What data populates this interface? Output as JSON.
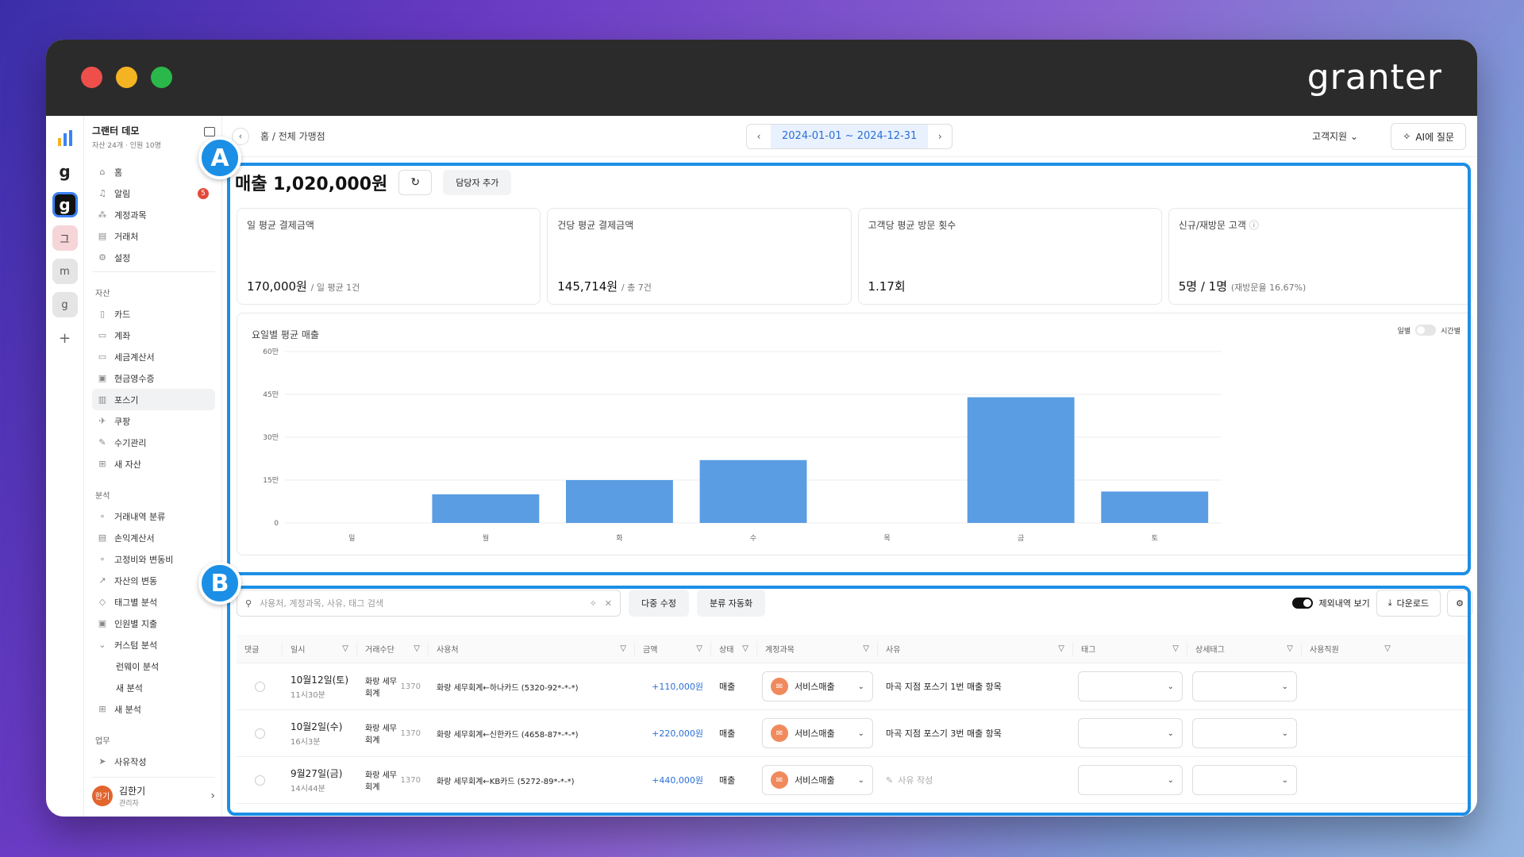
{
  "window": {
    "brand": "granter"
  },
  "rail": {
    "items": [
      "g",
      "g",
      "그",
      "m",
      "g",
      "+"
    ]
  },
  "sidebar": {
    "org_name": "그랜터 데모",
    "org_sub": "자산 24개 · 인원 10명",
    "top": [
      {
        "label": "홈",
        "icon": "home-icon"
      },
      {
        "label": "알림",
        "icon": "bell-icon",
        "badge": "5"
      },
      {
        "label": "계정과목",
        "icon": "ledger-icon"
      },
      {
        "label": "거래처",
        "icon": "contacts-icon"
      },
      {
        "label": "설정",
        "icon": "gear-icon"
      }
    ],
    "asset_section": "자산",
    "assets": [
      {
        "label": "카드",
        "icon": "card-icon"
      },
      {
        "label": "계좌",
        "icon": "bank-icon"
      },
      {
        "label": "세금계산서",
        "icon": "tax-invoice-icon"
      },
      {
        "label": "현금영수증",
        "icon": "receipt-icon"
      },
      {
        "label": "포스기",
        "icon": "pos-icon",
        "selected": true
      },
      {
        "label": "쿠팡",
        "icon": "coupang-icon"
      },
      {
        "label": "수기관리",
        "icon": "pencil-icon"
      },
      {
        "label": "새 자산",
        "icon": "plus-box-icon"
      }
    ],
    "analysis_section": "분석",
    "analysis": [
      {
        "label": "거래내역 분류",
        "icon": "classify-icon"
      },
      {
        "label": "손익계산서",
        "icon": "statement-icon"
      },
      {
        "label": "고정비와 변동비",
        "icon": "cost-icon"
      },
      {
        "label": "자산의 변동",
        "icon": "trend-icon"
      },
      {
        "label": "태그별 분석",
        "icon": "tag-icon"
      },
      {
        "label": "인원별 지출",
        "icon": "people-icon"
      },
      {
        "label": "커스텀 분석",
        "icon": "chevron-down-icon"
      },
      {
        "label": "런웨이 분석",
        "icon": "",
        "sub": true
      },
      {
        "label": "새 분석",
        "icon": "",
        "sub": true
      },
      {
        "label": "새 분석",
        "icon": "plus-box-icon"
      }
    ],
    "work_section": "업무",
    "work": [
      {
        "label": "사유작성",
        "icon": "send-icon"
      }
    ],
    "user": {
      "avatar": "한기",
      "name": "김한기",
      "role": "관리자"
    }
  },
  "topbar": {
    "breadcrumb": "홈 / 전체 가맹점",
    "date_range": "2024-01-01 ~ 2024-12-31",
    "support": "고객지원",
    "ai_button": "AI에 질문"
  },
  "callouts": {
    "a": "A",
    "b": "B"
  },
  "summary": {
    "title": "매출 1,020,000원",
    "add_manager": "담당자 추가",
    "cards": [
      {
        "label": "일 평균 결제금액",
        "value": "170,000원",
        "sub": "/ 일 평균 1건"
      },
      {
        "label": "건당 평균 결제금액",
        "value": "145,714원",
        "sub": "/ 총 7건"
      },
      {
        "label": "고객당 평균 방문 횟수",
        "value": "1.17회",
        "sub": ""
      },
      {
        "label": "신규/재방문 고객",
        "value": "5명 / 1명",
        "sub": "(재방문율 16.67%)"
      }
    ]
  },
  "chart_toggle": {
    "left": "일별",
    "right": "시간별"
  },
  "chart_data": {
    "type": "bar",
    "title": "요일별 평균 매출",
    "categories": [
      "일",
      "월",
      "화",
      "수",
      "목",
      "금",
      "토"
    ],
    "values": [
      0,
      100000,
      150000,
      220000,
      0,
      440000,
      110000
    ],
    "yticks": [
      "0",
      "15만",
      "30만",
      "45만",
      "60만"
    ],
    "ytick_values": [
      0,
      150000,
      300000,
      450000,
      600000
    ],
    "ylim": [
      0,
      600000
    ],
    "color": "#5a9de3",
    "grid": true
  },
  "tools": {
    "search_placeholder": "사용처, 계정과목, 사유, 태그 검색",
    "multi_edit": "다중 수정",
    "auto_classify": "분류 자동화",
    "show_excluded": "제외내역 보기",
    "download": "다운로드"
  },
  "table": {
    "headers": [
      "댓글",
      "일시",
      "거래수단",
      "사용처",
      "금액",
      "상태",
      "계정과목",
      "사유",
      "태그",
      "상세태그",
      "사용직원"
    ],
    "rows": [
      {
        "date": "10월12일(토)",
        "time": "11시30분",
        "method": "화랑 세무회계",
        "method_code": "1370",
        "place": "화랑 세무회계←하나카드 (5320-92*-*-*)",
        "amount": "+110,000원",
        "status": "매출",
        "account": "서비스매출",
        "reason": "마곡 지점 포스기 1번 매출 항목",
        "reason_placeholder": false
      },
      {
        "date": "10월2일(수)",
        "time": "16시3분",
        "method": "화랑 세무회계",
        "method_code": "1370",
        "place": "화랑 세무회계←신한카드 (4658-87*-*-*)",
        "amount": "+220,000원",
        "status": "매출",
        "account": "서비스매출",
        "reason": "마곡 지점 포스기 3번 매출 항목",
        "reason_placeholder": false
      },
      {
        "date": "9월27일(금)",
        "time": "14시44분",
        "method": "화랑 세무회계",
        "method_code": "1370",
        "place": "화랑 세무회계←KB카드 (5272-89*-*-*)",
        "amount": "+440,000원",
        "status": "매출",
        "account": "서비스매출",
        "reason": "사유 작성",
        "reason_placeholder": true
      }
    ]
  }
}
